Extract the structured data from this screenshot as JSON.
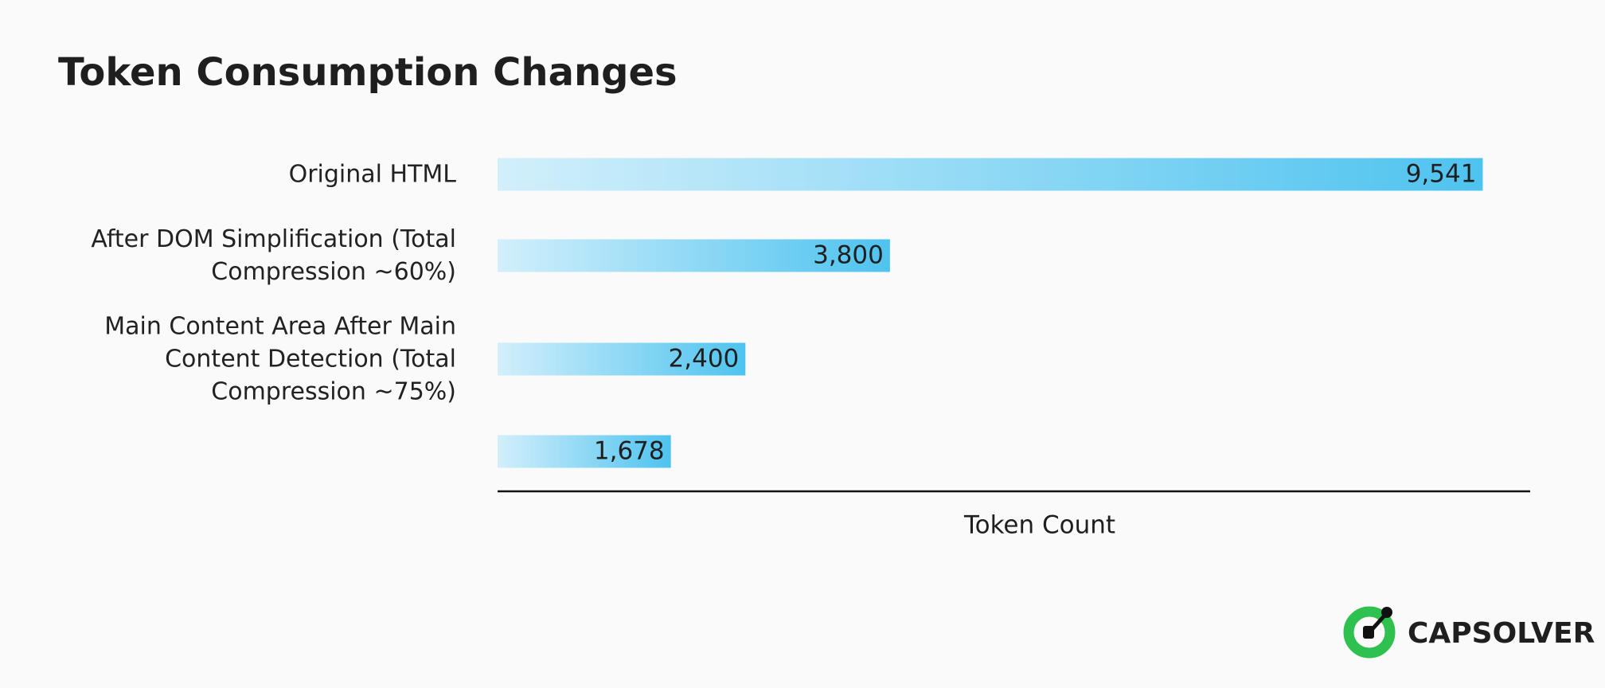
{
  "chart_data": {
    "type": "bar",
    "orientation": "horizontal",
    "title": "Token Consumption Changes",
    "categories": [
      "Original HTML",
      "After DOM Simplification (Total Compression ~60%)",
      "Main Content Area After Main Content Detection (Total Compression ~75%)",
      null
    ],
    "values": [
      9541,
      3800,
      2400,
      1678
    ],
    "value_labels": [
      "9,541",
      "3,800",
      "2,400",
      "1,678"
    ],
    "xlabel": "Token Count",
    "xlim": [
      0,
      10000
    ],
    "color": [
      "#d2effb",
      "#4ec3ef"
    ]
  },
  "brand": "CAPSOLVER"
}
